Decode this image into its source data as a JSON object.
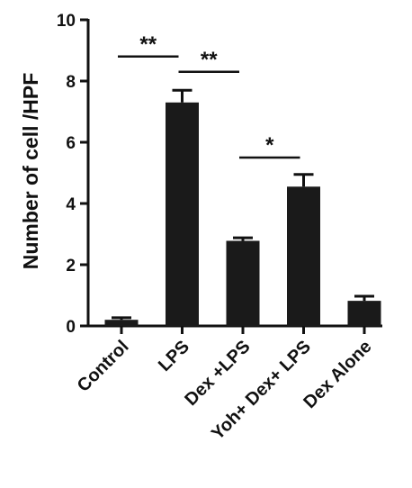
{
  "chart_data": {
    "type": "bar",
    "categories": [
      "Control",
      "LPS",
      "Dex +LPS",
      "Yoh+ Dex+ LPS",
      "Dex Alone"
    ],
    "values": [
      0.2,
      7.3,
      2.78,
      4.55,
      0.82
    ],
    "error": [
      0.07,
      0.4,
      0.1,
      0.4,
      0.15
    ],
    "ylabel": "Number of cell /HPF",
    "xlabel": "",
    "ylim": [
      0,
      10
    ],
    "yticks": [
      0,
      2,
      4,
      6,
      8,
      10
    ],
    "bar_color": "#1a1a1a",
    "grid": false,
    "significance": [
      {
        "from": 0,
        "to": 1,
        "label": "**",
        "y": 8.8
      },
      {
        "from": 1,
        "to": 2,
        "label": "**",
        "y": 8.3
      },
      {
        "from": 2,
        "to": 3,
        "label": "*",
        "y": 5.5
      }
    ]
  }
}
